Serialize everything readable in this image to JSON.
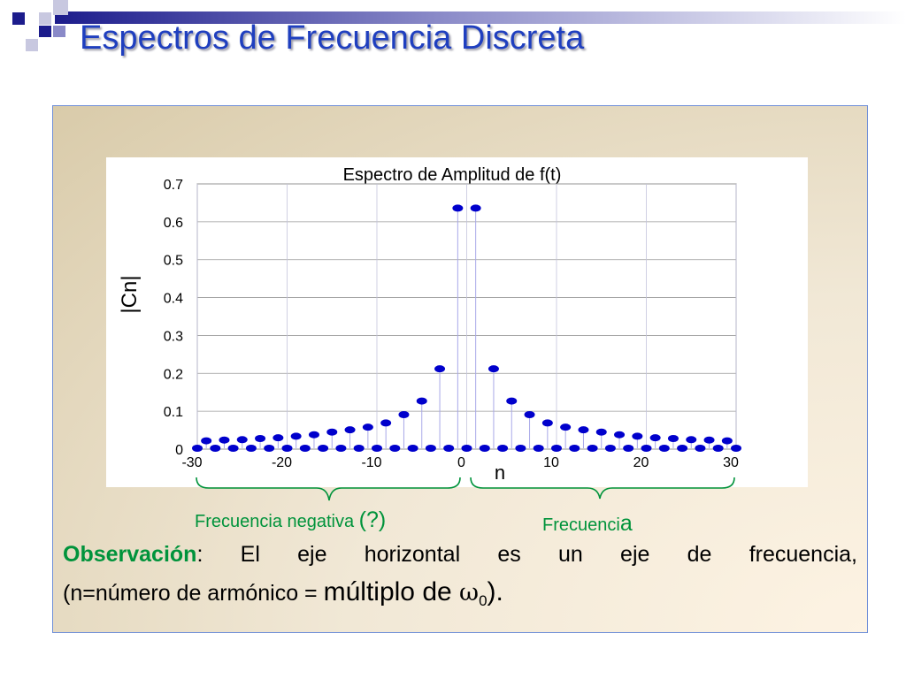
{
  "slide": {
    "title": "Espectros de Frecuencia Discreta"
  },
  "annotations": {
    "negative_text": "Frecuencia negativa ",
    "negative_question": "(?)",
    "positive_text": "Frecuenci",
    "positive_last": "a"
  },
  "observation": {
    "label": "Observación",
    "colon": ":",
    "line1_rest": " El eje horizontal es un eje de frecuencia,",
    "line2_start": "(n=número de armónico = ",
    "line2_big": "múltiplo de ",
    "omega": "ω",
    "subscript": "0",
    "close": ")."
  },
  "colors": {
    "title": "#1f3fbf",
    "annotation_green": "#00933b",
    "marker_blue": "#0000cc",
    "box_border": "#6f8fd8"
  },
  "chart_data": {
    "type": "scatter",
    "style": "stem",
    "title": "Espectro de Amplitud de f(t)",
    "xlabel": "n",
    "ylabel": "|Cn|",
    "xlim": [
      -30,
      30
    ],
    "ylim": [
      0,
      0.7
    ],
    "xticks": [
      "-30",
      "-20",
      "-10",
      "0",
      "10",
      "20",
      "30"
    ],
    "yticks": [
      "0",
      "0.1",
      "0.2",
      "0.3",
      "0.4",
      "0.5",
      "0.6",
      "0.7"
    ],
    "grid": true,
    "series": [
      {
        "x": [
          -30,
          -29,
          -28,
          -27,
          -26,
          -25,
          -24,
          -23,
          -22,
          -21,
          -20,
          -19,
          -18,
          -17,
          -16,
          -15,
          -14,
          -13,
          -12,
          -11,
          -10,
          -9,
          -8,
          -7,
          -6,
          -5,
          -4,
          -3,
          -2,
          -1,
          0,
          1,
          2,
          3,
          4,
          5,
          6,
          7,
          8,
          9,
          10,
          11,
          12,
          13,
          14,
          15,
          16,
          17,
          18,
          19,
          20,
          21,
          22,
          23,
          24,
          25,
          26,
          27,
          28,
          29,
          30
        ],
        "values": [
          0,
          0.022,
          0,
          0.024,
          0,
          0.025,
          0,
          0.028,
          0,
          0.03,
          0,
          0.034,
          0,
          0.038,
          0,
          0.045,
          0,
          0.051,
          0,
          0.058,
          0,
          0.069,
          0,
          0.091,
          0,
          0.127,
          0,
          0.212,
          0,
          0.636,
          0,
          0.636,
          0,
          0.212,
          0,
          0.127,
          0,
          0.091,
          0,
          0.069,
          0,
          0.058,
          0,
          0.051,
          0,
          0.045,
          0,
          0.038,
          0,
          0.034,
          0,
          0.03,
          0,
          0.028,
          0,
          0.025,
          0,
          0.024,
          0,
          0.022,
          0
        ]
      }
    ]
  }
}
